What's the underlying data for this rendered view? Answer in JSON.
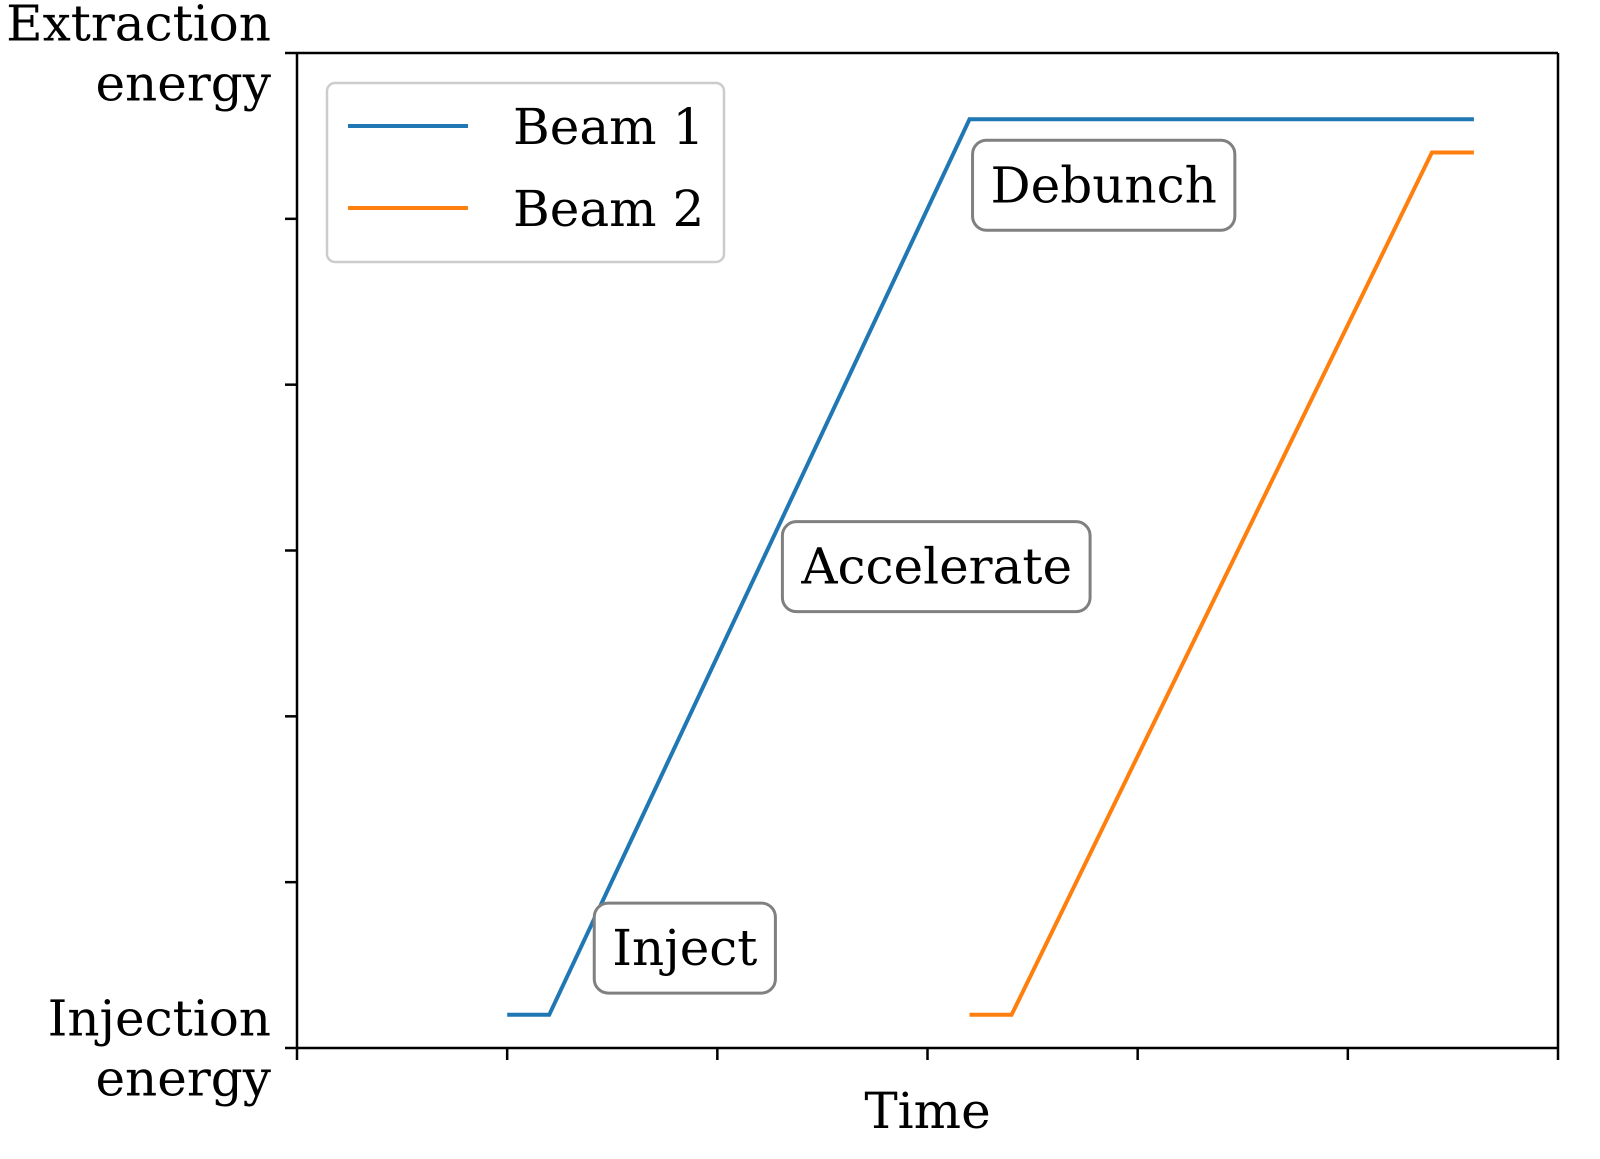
{
  "chart_data": {
    "type": "line",
    "xlabel": "Time",
    "ylabel": "",
    "xlim": [
      0,
      6
    ],
    "ylim": [
      0,
      6
    ],
    "y_tick_values": [
      0,
      1,
      2,
      3,
      4,
      5,
      6
    ],
    "x_tick_values": [
      0,
      1,
      2,
      3,
      4,
      5,
      6
    ],
    "y_tick_labels": [
      {
        "value": 6,
        "lines": [
          "Extraction",
          "energy"
        ]
      },
      {
        "value": 0,
        "lines": [
          "Injection",
          "energy"
        ]
      }
    ],
    "grid": false,
    "legend": {
      "position": "top-left",
      "entries": [
        "Beam 1",
        "Beam 2"
      ]
    },
    "series": [
      {
        "name": "Beam 1",
        "color": "#1f77b4",
        "x": [
          1.0,
          1.2,
          3.2,
          5.6
        ],
        "y": [
          0.2,
          0.2,
          5.6,
          5.6
        ]
      },
      {
        "name": "Beam 2",
        "color": "#ff7f0e",
        "x": [
          3.2,
          3.4,
          5.4,
          5.6
        ],
        "y": [
          0.2,
          0.2,
          5.4,
          5.4
        ]
      }
    ],
    "annotations": [
      {
        "text": "Inject",
        "x": 1.5,
        "y": 0.5
      },
      {
        "text": "Accelerate",
        "x": 2.4,
        "y": 2.8
      },
      {
        "text": "Debunch",
        "x": 3.3,
        "y": 5.1
      }
    ]
  }
}
